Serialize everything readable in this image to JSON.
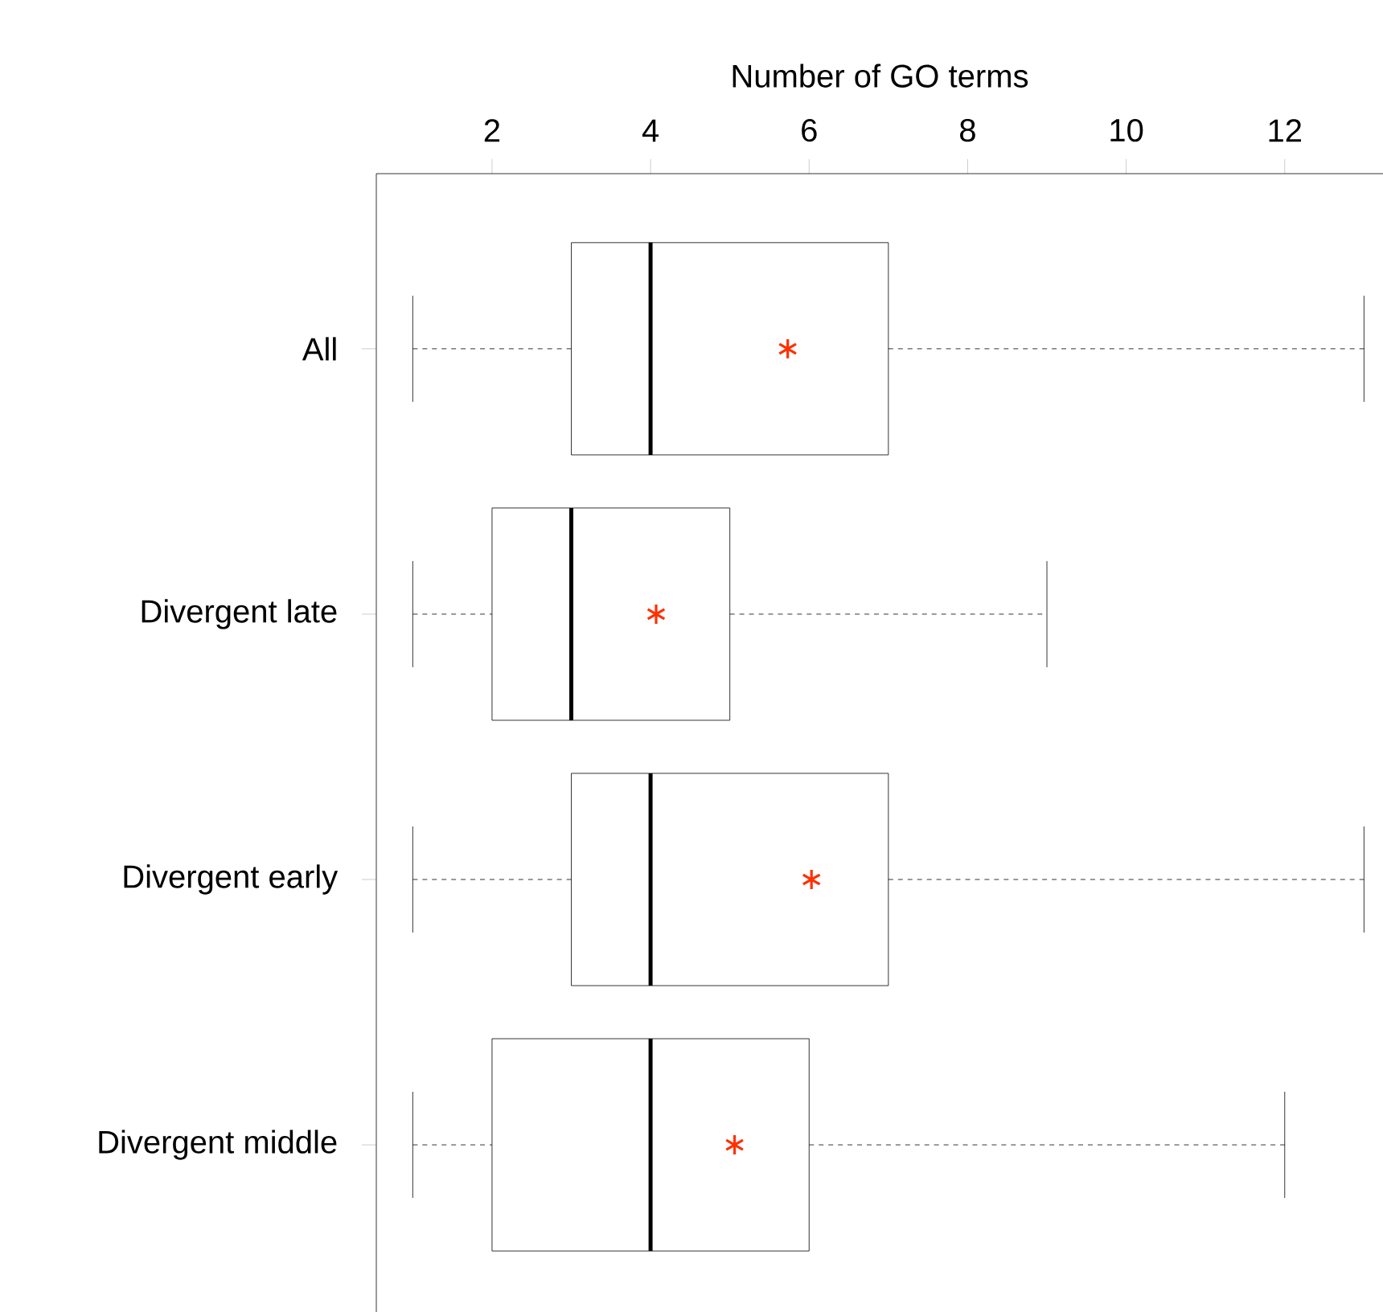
{
  "chart_data": {
    "type": "box",
    "orientation": "horizontal",
    "xlabel": "Number of GO terms",
    "categories": [
      "All",
      "Divergent late",
      "Divergent early",
      "Divergent middle"
    ],
    "boxes": [
      {
        "low": 1,
        "q1": 3,
        "median": 4,
        "q3": 7,
        "high": 13,
        "mean": 5.73
      },
      {
        "low": 1,
        "q1": 2,
        "median": 3,
        "q3": 5,
        "high": 9,
        "mean": 4.07
      },
      {
        "low": 1,
        "q1": 3,
        "median": 4,
        "q3": 7,
        "high": 13,
        "mean": 6.03
      },
      {
        "low": 1,
        "q1": 2,
        "median": 4,
        "q3": 6,
        "high": 12,
        "mean": 5.06
      }
    ],
    "xlim": [
      0.54,
      13.24
    ],
    "xticks": [
      2,
      4,
      6,
      8,
      10,
      12
    ]
  }
}
